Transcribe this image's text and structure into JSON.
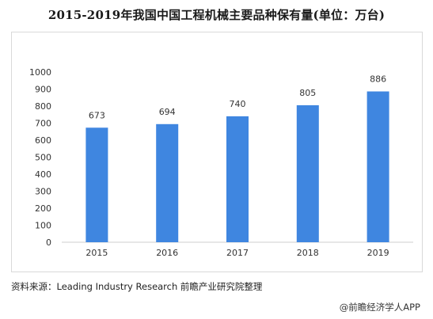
{
  "title": "2015-2019年我国中国工程机械主要品种保有量(单位：万台)",
  "chart_data": {
    "type": "bar",
    "categories": [
      "2015",
      "2016",
      "2017",
      "2018",
      "2019"
    ],
    "values": [
      673,
      694,
      740,
      805,
      886
    ],
    "data_labels": [
      "673",
      "694",
      "740",
      "805",
      "886"
    ],
    "ylim": [
      0,
      1000
    ],
    "yticks": [
      "0",
      "100",
      "200",
      "300",
      "400",
      "500",
      "600",
      "700",
      "800",
      "900",
      "1000"
    ],
    "grid": false,
    "bar_color": "#3f86e0"
  },
  "footer": {
    "source": "资料来源：Leading Industry Research 前瞻产业研究院整理",
    "credit": "@前瞻经济学人APP"
  }
}
